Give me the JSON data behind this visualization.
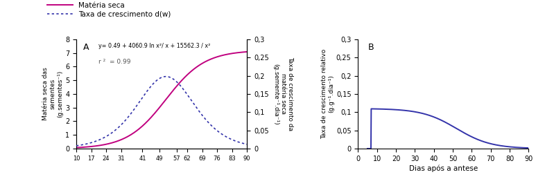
{
  "panel_A": {
    "label": "A",
    "x_ticks": [
      10,
      17,
      24,
      31,
      41,
      49,
      57,
      62,
      69,
      76,
      83,
      90
    ],
    "ylabel_left": "Matéria seca das\nsementes\n(g.sementes⁻¹)",
    "ylabel_right": "Taxa de crescimento da\nmatéria seca\n(g.semente⁻¹.dia⁻¹)",
    "ylim_left": [
      0,
      8
    ],
    "ylim_right": [
      0,
      0.3
    ],
    "yticks_left": [
      0,
      1,
      2,
      3,
      4,
      5,
      6,
      7,
      8
    ],
    "yticks_right": [
      0,
      0.05,
      0.1,
      0.15,
      0.2,
      0.25,
      0.3
    ],
    "equation": "y= 0.49 + 4060.9 ln x²/ x + 15562.3 / x²",
    "r2_text": "r ²  = 0.99",
    "line_materia_color": "#c0007f",
    "line_taxa_color": "#3333aa",
    "legend_materia": "Matéria seca",
    "legend_taxa": "Taxa de crescimento d(w)"
  },
  "panel_B": {
    "label": "B",
    "xlabel": "Dias após a antese",
    "ylabel": "Taxa de crescimento relativo\n(g.g⁻¹.dia⁻¹)",
    "xlim": [
      0,
      90
    ],
    "ylim": [
      0,
      0.3
    ],
    "xticks": [
      0,
      10,
      20,
      30,
      40,
      50,
      60,
      70,
      80,
      90
    ],
    "yticks": [
      0,
      0.05,
      0.1,
      0.15,
      0.2,
      0.25,
      0.3
    ],
    "line_color": "#3333aa"
  }
}
